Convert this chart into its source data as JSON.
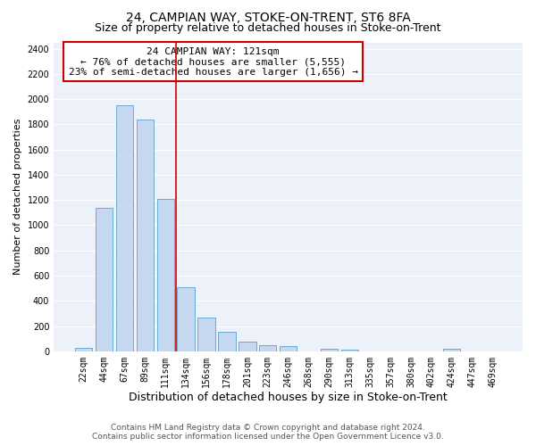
{
  "title": "24, CAMPIAN WAY, STOKE-ON-TRENT, ST6 8FA",
  "subtitle": "Size of property relative to detached houses in Stoke-on-Trent",
  "xlabel": "Distribution of detached houses by size in Stoke-on-Trent",
  "ylabel": "Number of detached properties",
  "bar_labels": [
    "22sqm",
    "44sqm",
    "67sqm",
    "89sqm",
    "111sqm",
    "134sqm",
    "156sqm",
    "178sqm",
    "201sqm",
    "223sqm",
    "246sqm",
    "268sqm",
    "290sqm",
    "313sqm",
    "335sqm",
    "357sqm",
    "380sqm",
    "402sqm",
    "424sqm",
    "447sqm",
    "469sqm"
  ],
  "bar_values": [
    30,
    1140,
    1950,
    1840,
    1210,
    510,
    265,
    155,
    80,
    50,
    42,
    0,
    22,
    15,
    0,
    0,
    0,
    0,
    20,
    0,
    0
  ],
  "bar_color": "#c5d8f0",
  "bar_edgecolor": "#6aaad4",
  "annotation_text_line1": "24 CAMPIAN WAY: 121sqm",
  "annotation_text_line2": "← 76% of detached houses are smaller (5,555)",
  "annotation_text_line3": "23% of semi-detached houses are larger (1,656) →",
  "ylim": [
    0,
    2450
  ],
  "yticks": [
    0,
    200,
    400,
    600,
    800,
    1000,
    1200,
    1400,
    1600,
    1800,
    2000,
    2200,
    2400
  ],
  "footer_line1": "Contains HM Land Registry data © Crown copyright and database right 2024.",
  "footer_line2": "Contains public sector information licensed under the Open Government Licence v3.0.",
  "background_color": "#ffffff",
  "plot_bg_color": "#edf2fa",
  "grid_color": "#ffffff",
  "annotation_box_color": "#ffffff",
  "annotation_box_edgecolor": "#cc0000",
  "vline_color": "#cc0000",
  "title_fontsize": 10,
  "subtitle_fontsize": 9,
  "ylabel_fontsize": 8,
  "xlabel_fontsize": 9,
  "tick_fontsize": 7,
  "annotation_fontsize": 8,
  "footer_fontsize": 6.5,
  "vline_xindex": 4.5
}
